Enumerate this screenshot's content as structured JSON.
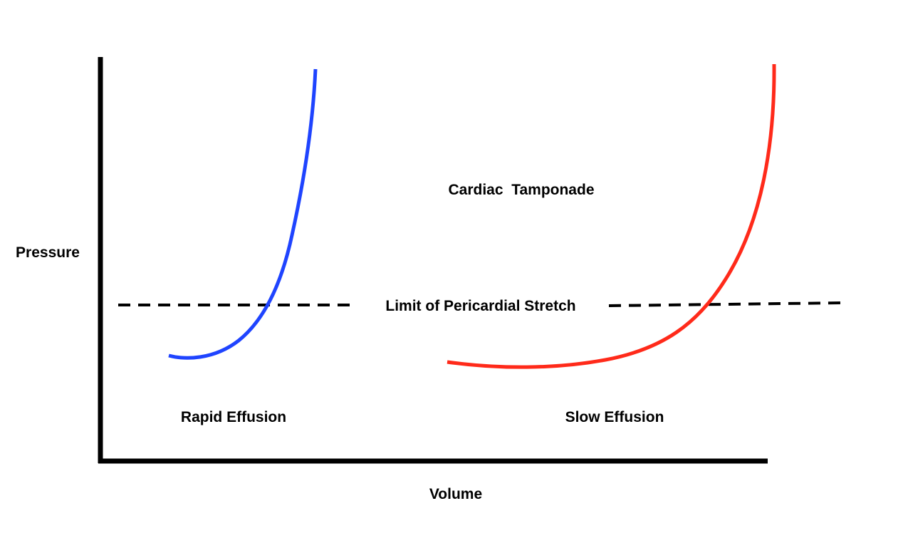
{
  "labels": {
    "y_axis": "Pressure",
    "x_axis": "Volume",
    "region_above": "Cardiac  Tamponade",
    "threshold_line": "Limit of Pericardial Stretch",
    "left_curve": "Rapid Effusion",
    "right_curve": "Slow Effusion"
  },
  "colors": {
    "rapid_curve": "#1f44ff",
    "slow_curve": "#ff2a1a",
    "axes": "#000000",
    "threshold_line": "#000000"
  },
  "style": {
    "threshold_line": "dashed"
  }
}
